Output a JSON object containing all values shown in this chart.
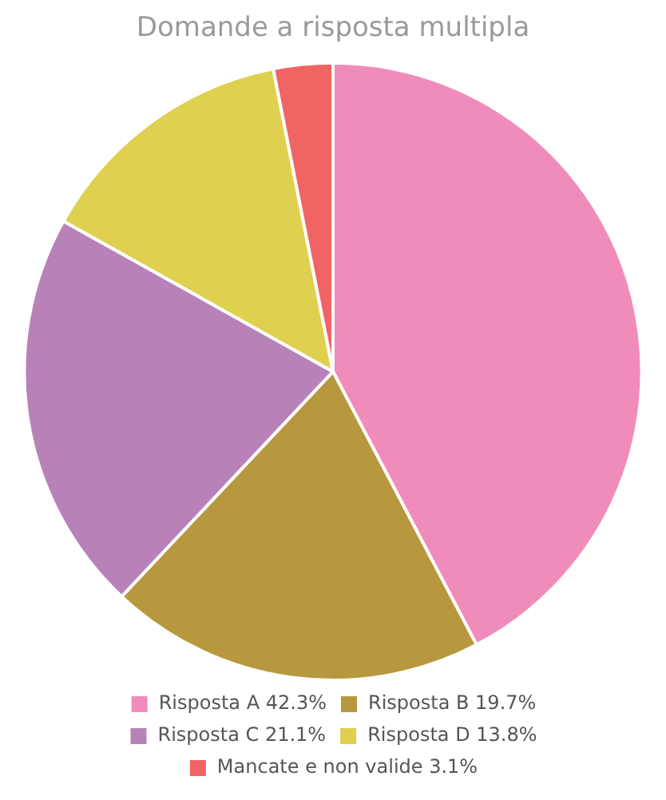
{
  "chart_data": {
    "type": "pie",
    "title": "Domande a risposta multipla",
    "categories": [
      "Risposta A",
      "Risposta B",
      "Risposta C",
      "Risposta D",
      "Mancate e non valide"
    ],
    "values": [
      42.3,
      19.7,
      21.1,
      13.8,
      3.1
    ],
    "value_labels": [
      "42.3%",
      "19.7%",
      "21.1%",
      "13.8%",
      "3.1%"
    ],
    "colors": [
      "#f08cba",
      "#b8983e",
      "#b882b8",
      "#e0d050",
      "#f06464"
    ],
    "legend": "bottom"
  }
}
